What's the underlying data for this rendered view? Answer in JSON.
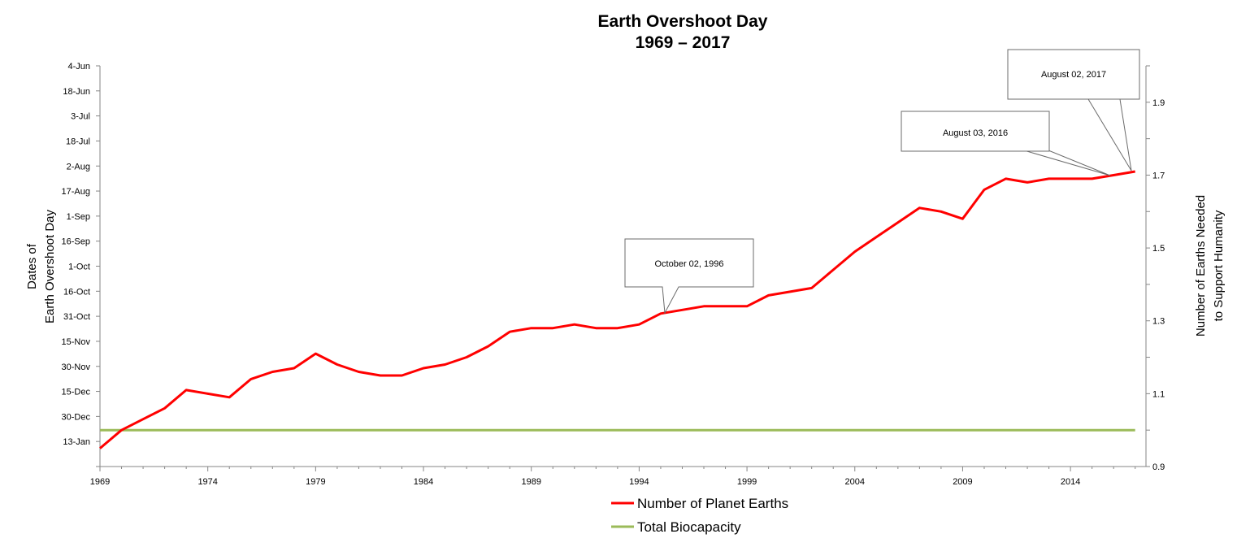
{
  "chart_data": {
    "type": "line",
    "title": "Earth Overshoot Day",
    "subtitle": "1969 – 2017",
    "ylabel_left": [
      "Dates of",
      "Earth Overshoot Day"
    ],
    "ylabel_right": [
      "Number of Earths Needed",
      "to Support Humanity"
    ],
    "x_ticks": [
      "1969",
      "1974",
      "1979",
      "1984",
      "1989",
      "1994",
      "1999",
      "2004",
      "2009",
      "2014"
    ],
    "xlim": [
      1969,
      2017.5
    ],
    "left_ticks": [
      "4-Jun",
      "18-Jun",
      "3-Jul",
      "18-Jul",
      "2-Aug",
      "17-Aug",
      "1-Sep",
      "16-Sep",
      "1-Oct",
      "16-Oct",
      "31-Oct",
      "15-Nov",
      "30-Nov",
      "15-Dec",
      "30-Dec",
      "13-Jan"
    ],
    "right_ticks": [
      "1.9",
      "1.7",
      "1.5",
      "1.3",
      "1.1",
      "0.9"
    ],
    "right_ylim": [
      0.9,
      2.0
    ],
    "series": [
      {
        "name": "Number of Planet Earths",
        "color": "#ff0000",
        "x": [
          1969,
          1970,
          1971,
          1972,
          1973,
          1974,
          1975,
          1976,
          1977,
          1978,
          1979,
          1980,
          1981,
          1982,
          1983,
          1984,
          1985,
          1986,
          1987,
          1988,
          1989,
          1990,
          1991,
          1992,
          1993,
          1994,
          1995,
          1996,
          1997,
          1998,
          1999,
          2000,
          2001,
          2002,
          2003,
          2004,
          2005,
          2006,
          2007,
          2008,
          2009,
          2010,
          2011,
          2012,
          2013,
          2014,
          2015,
          2016,
          2017
        ],
        "values": [
          0.95,
          1.0,
          1.03,
          1.06,
          1.11,
          1.1,
          1.09,
          1.14,
          1.16,
          1.17,
          1.21,
          1.18,
          1.16,
          1.15,
          1.15,
          1.17,
          1.18,
          1.2,
          1.23,
          1.27,
          1.28,
          1.28,
          1.29,
          1.28,
          1.28,
          1.29,
          1.32,
          1.33,
          1.34,
          1.34,
          1.34,
          1.37,
          1.38,
          1.39,
          1.44,
          1.49,
          1.53,
          1.57,
          1.61,
          1.6,
          1.58,
          1.66,
          1.69,
          1.68,
          1.69,
          1.69,
          1.69,
          1.7,
          1.71
        ]
      },
      {
        "name": "Total Biocapacity",
        "color": "#9bbb59",
        "x": [
          1969,
          2017
        ],
        "values": [
          1.0,
          1.0
        ]
      }
    ],
    "annotations": [
      {
        "text": "October 02, 1996",
        "x": 1995.5,
        "y": 1.32
      },
      {
        "text": "August 03, 2016",
        "x": 2016,
        "y": 1.7
      },
      {
        "text": "August 02, 2017",
        "x": 2017,
        "y": 1.71
      }
    ],
    "legend_position": "bottom",
    "grid": false
  }
}
